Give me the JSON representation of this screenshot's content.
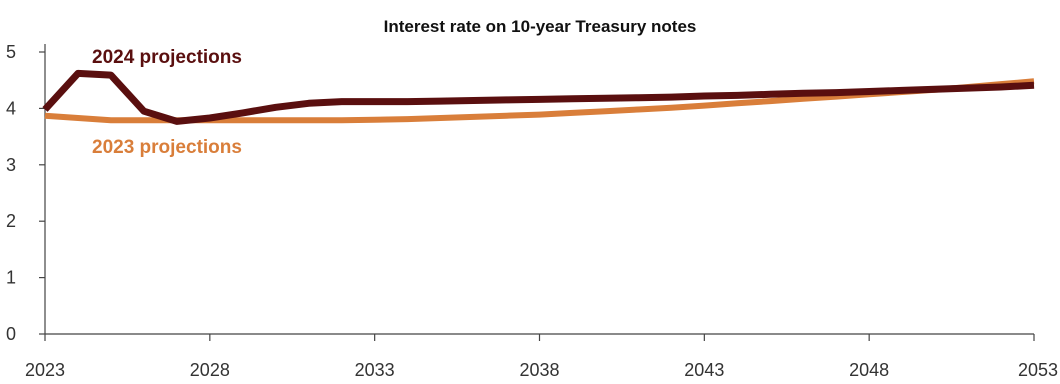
{
  "chart_data": {
    "type": "line",
    "title": "Interest rate on 10-year Treasury notes",
    "xlabel": "",
    "ylabel": "",
    "xlim": [
      2023,
      2053
    ],
    "ylim": [
      0,
      5
    ],
    "x_ticks": [
      "2023",
      "2028",
      "2033",
      "2038",
      "2043",
      "2048",
      "2053"
    ],
    "y_ticks": [
      "0",
      "1",
      "2",
      "3",
      "4",
      "5"
    ],
    "grid": false,
    "legend": "direct labels",
    "series": [
      {
        "name": "2023 projections",
        "color": "#d97e3a",
        "x": [
          2023,
          2024,
          2025,
          2026,
          2027,
          2028,
          2029,
          2030,
          2031,
          2032,
          2033,
          2034,
          2035,
          2036,
          2037,
          2038,
          2039,
          2040,
          2041,
          2042,
          2043,
          2044,
          2045,
          2046,
          2047,
          2048,
          2049,
          2050,
          2051,
          2052,
          2053
        ],
        "y": [
          3.87,
          3.83,
          3.79,
          3.79,
          3.79,
          3.79,
          3.79,
          3.79,
          3.79,
          3.79,
          3.8,
          3.81,
          3.83,
          3.85,
          3.87,
          3.89,
          3.92,
          3.95,
          3.98,
          4.01,
          4.05,
          4.09,
          4.13,
          4.17,
          4.21,
          4.25,
          4.29,
          4.33,
          4.38,
          4.43,
          4.48
        ]
      },
      {
        "name": "2024 projections",
        "color": "#5a0f0f",
        "x": [
          2023,
          2024,
          2025,
          2026,
          2027,
          2028,
          2029,
          2030,
          2031,
          2032,
          2033,
          2034,
          2035,
          2036,
          2037,
          2038,
          2039,
          2040,
          2041,
          2042,
          2043,
          2044,
          2045,
          2046,
          2047,
          2048,
          2049,
          2050,
          2051,
          2052,
          2053
        ],
        "y": [
          3.98,
          4.62,
          4.59,
          3.95,
          3.77,
          3.83,
          3.92,
          4.02,
          4.09,
          4.12,
          4.12,
          4.12,
          4.13,
          4.14,
          4.15,
          4.16,
          4.17,
          4.18,
          4.19,
          4.2,
          4.22,
          4.23,
          4.25,
          4.27,
          4.28,
          4.3,
          4.32,
          4.34,
          4.36,
          4.38,
          4.41
        ]
      }
    ]
  }
}
